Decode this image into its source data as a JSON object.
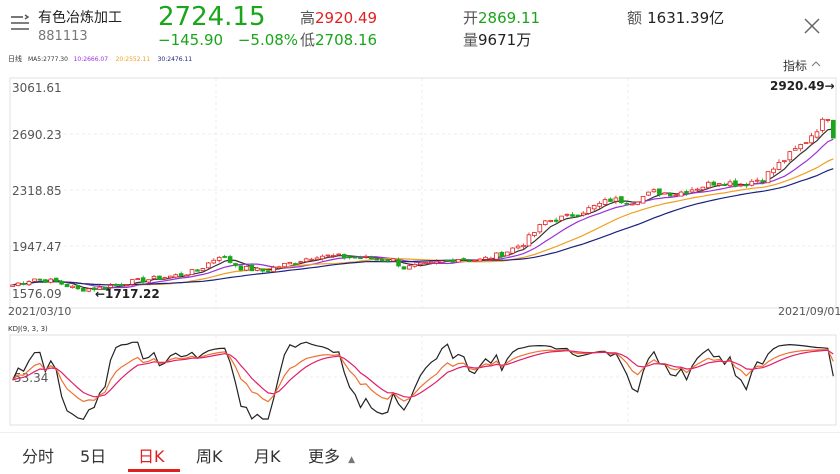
{
  "header": {
    "name": "有色冶炼加工",
    "code": "881113",
    "price": "2724.15",
    "change": "−145.90",
    "change_pct": "−5.08%",
    "high_label": "高",
    "high": "2920.49",
    "low_label": "低",
    "low": "2708.16",
    "open_label": "开",
    "open": "2869.11",
    "volume_label": "量",
    "volume": "9671万",
    "amount_label": "额",
    "amount": "1631.39亿"
  },
  "kline": {
    "period_label": "日线",
    "ma_legend": [
      {
        "text": "MA5:2777.30",
        "color": "#333333"
      },
      {
        "text": "10:2666.07",
        "color": "#9b30d9"
      },
      {
        "text": "20:2552.11",
        "color": "#f0a020"
      },
      {
        "text": "30:2476.11",
        "color": "#1a237e"
      }
    ],
    "indicator_label": "指标",
    "y_ticks": [
      "3061.61",
      "2690.23",
      "2318.85",
      "1947.47",
      "1576.09"
    ],
    "start_date": "2021/03/10",
    "end_date": "2021/09/01",
    "high_annotation": "2920.49→",
    "low_annotation": "←1717.22",
    "colors": {
      "up": "#e02020",
      "down": "#1aa51a"
    }
  },
  "kdj": {
    "label": "KDJ(9, 3, 3)",
    "level": "53.34",
    "colors": {
      "k": "#f07030",
      "d": "#e0206a",
      "j": "#222222"
    }
  },
  "tabs": [
    {
      "label": "分时",
      "active": false
    },
    {
      "label": "5日",
      "active": false
    },
    {
      "label": "日K",
      "active": true
    },
    {
      "label": "周K",
      "active": false
    },
    {
      "label": "月K",
      "active": false
    },
    {
      "label": "更多",
      "active": false
    }
  ],
  "chart_data": {
    "type": "candlestick",
    "x_range": [
      "2021/03/10",
      "2021/09/01"
    ],
    "ylim": [
      1576.09,
      3061.61
    ],
    "trend_anchors": [
      [
        0,
        1790
      ],
      [
        4,
        1830
      ],
      [
        8,
        1810
      ],
      [
        12,
        1760
      ],
      [
        16,
        1770
      ],
      [
        20,
        1800
      ],
      [
        26,
        1830
      ],
      [
        30,
        1850
      ],
      [
        34,
        1880
      ],
      [
        38,
        1980
      ],
      [
        42,
        1900
      ],
      [
        46,
        1880
      ],
      [
        52,
        1940
      ],
      [
        56,
        1980
      ],
      [
        62,
        1970
      ],
      [
        66,
        1960
      ],
      [
        70,
        1950
      ],
      [
        72,
        1900
      ],
      [
        76,
        1920
      ],
      [
        82,
        1960
      ],
      [
        86,
        1950
      ],
      [
        90,
        1990
      ],
      [
        94,
        2060
      ],
      [
        98,
        2200
      ],
      [
        102,
        2230
      ],
      [
        106,
        2280
      ],
      [
        110,
        2340
      ],
      [
        114,
        2330
      ],
      [
        118,
        2390
      ],
      [
        122,
        2380
      ],
      [
        126,
        2420
      ],
      [
        130,
        2460
      ],
      [
        134,
        2440
      ],
      [
        138,
        2480
      ],
      [
        142,
        2600
      ],
      [
        146,
        2720
      ],
      [
        150,
        2880
      ],
      [
        151,
        2760
      ]
    ]
  }
}
